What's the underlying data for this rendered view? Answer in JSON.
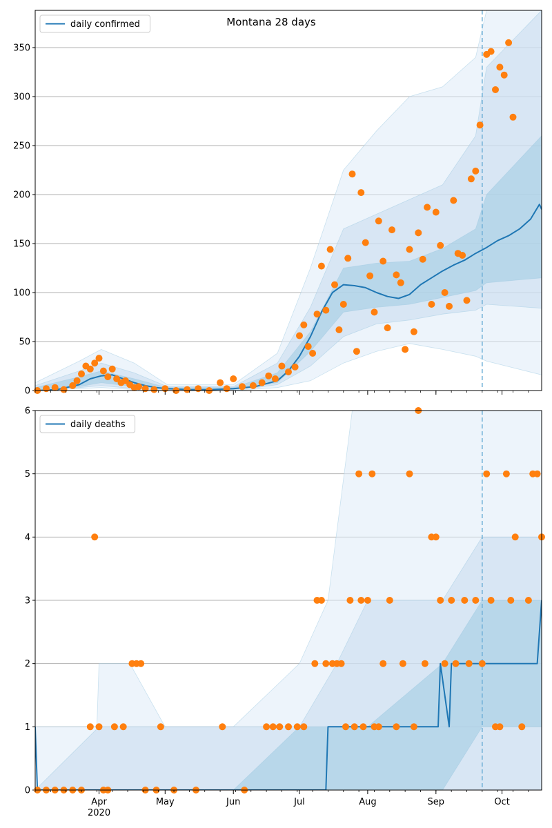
{
  "colors": {
    "line": "#1f77b4",
    "points": "#ff7f0e",
    "band_light": "#deebf7",
    "band_mid": "#c6dbef",
    "band_dark": "#9ecae1",
    "grid": "#b0b0b0",
    "forecast_divider": "#6baed6"
  },
  "chart_data": [
    {
      "type": "line",
      "title": "Montana 28 days",
      "legend": {
        "label": "daily confirmed",
        "placement": "top-left"
      },
      "grid": "horizontal",
      "x_axis": {
        "start": "2020-03-03",
        "end": "2020-10-19"
      },
      "ylim": [
        0,
        388
      ],
      "yticks": [
        0,
        50,
        100,
        150,
        200,
        250,
        300,
        350
      ],
      "forecast_start": "2020-09-22",
      "series": [
        {
          "name": "daily confirmed",
          "kind": "line",
          "x": [
            "2020-03-03",
            "2020-03-13",
            "2020-03-23",
            "2020-03-28",
            "2020-04-02",
            "2020-04-07",
            "2020-04-12",
            "2020-04-17",
            "2020-04-22",
            "2020-04-27",
            "2020-05-02",
            "2020-05-12",
            "2020-05-22",
            "2020-06-01",
            "2020-06-11",
            "2020-06-21",
            "2020-06-26",
            "2020-07-01",
            "2020-07-06",
            "2020-07-11",
            "2020-07-16",
            "2020-07-21",
            "2020-07-26",
            "2020-07-31",
            "2020-08-05",
            "2020-08-10",
            "2020-08-15",
            "2020-08-20",
            "2020-08-25",
            "2020-08-30",
            "2020-09-04",
            "2020-09-09",
            "2020-09-14",
            "2020-09-19",
            "2020-09-24",
            "2020-09-29",
            "2020-10-04",
            "2020-10-09",
            "2020-10-14",
            "2020-10-18",
            "2020-10-19"
          ],
          "y": [
            0,
            1,
            6,
            12,
            15,
            16,
            12,
            8,
            5,
            3,
            2,
            1,
            1,
            2,
            4,
            10,
            20,
            35,
            55,
            80,
            100,
            108,
            107,
            105,
            100,
            96,
            94,
            98,
            108,
            115,
            122,
            128,
            133,
            140,
            146,
            153,
            158,
            165,
            175,
            190,
            185
          ]
        },
        {
          "name": "uncertainty band (outer)",
          "kind": "band",
          "x": [
            "2020-03-03",
            "2020-03-23",
            "2020-04-02",
            "2020-04-17",
            "2020-05-02",
            "2020-06-01",
            "2020-06-21",
            "2020-07-06",
            "2020-07-21",
            "2020-08-05",
            "2020-08-20",
            "2020-09-04",
            "2020-09-19",
            "2020-09-24",
            "2020-10-19"
          ],
          "lower": [
            0,
            2,
            3,
            1,
            0,
            0,
            3,
            10,
            28,
            40,
            48,
            42,
            35,
            30,
            16
          ],
          "upper": [
            8,
            30,
            42,
            28,
            6,
            6,
            38,
            125,
            225,
            265,
            300,
            310,
            340,
            388,
            388
          ]
        },
        {
          "name": "uncertainty band (middle)",
          "kind": "band",
          "x": [
            "2020-03-03",
            "2020-03-23",
            "2020-04-02",
            "2020-04-17",
            "2020-05-02",
            "2020-06-01",
            "2020-06-21",
            "2020-07-06",
            "2020-07-21",
            "2020-08-05",
            "2020-08-20",
            "2020-09-04",
            "2020-09-19",
            "2020-09-24",
            "2020-10-19"
          ],
          "lower": [
            0,
            3,
            5,
            2,
            0,
            0,
            6,
            25,
            55,
            68,
            72,
            78,
            82,
            88,
            84
          ],
          "upper": [
            5,
            20,
            28,
            18,
            4,
            4,
            28,
            85,
            165,
            180,
            195,
            210,
            260,
            330,
            388
          ]
        },
        {
          "name": "uncertainty band (inner)",
          "kind": "band",
          "x": [
            "2020-03-03",
            "2020-03-23",
            "2020-04-02",
            "2020-04-17",
            "2020-05-02",
            "2020-06-01",
            "2020-06-21",
            "2020-07-06",
            "2020-07-21",
            "2020-08-05",
            "2020-08-20",
            "2020-09-04",
            "2020-09-19",
            "2020-09-24",
            "2020-10-19"
          ],
          "lower": [
            0,
            4,
            8,
            4,
            1,
            1,
            8,
            40,
            80,
            85,
            88,
            95,
            102,
            110,
            115
          ],
          "upper": [
            3,
            14,
            20,
            12,
            3,
            3,
            18,
            60,
            125,
            130,
            132,
            145,
            165,
            200,
            260
          ]
        },
        {
          "name": "observed",
          "kind": "scatter",
          "x": [
            "2020-03-04",
            "2020-03-08",
            "2020-03-12",
            "2020-03-16",
            "2020-03-20",
            "2020-03-22",
            "2020-03-24",
            "2020-03-26",
            "2020-03-28",
            "2020-03-30",
            "2020-04-01",
            "2020-04-03",
            "2020-04-05",
            "2020-04-07",
            "2020-04-09",
            "2020-04-11",
            "2020-04-13",
            "2020-04-15",
            "2020-04-17",
            "2020-04-19",
            "2020-04-22",
            "2020-04-26",
            "2020-05-01",
            "2020-05-06",
            "2020-05-11",
            "2020-05-16",
            "2020-05-21",
            "2020-05-26",
            "2020-05-29",
            "2020-06-01",
            "2020-06-05",
            "2020-06-10",
            "2020-06-14",
            "2020-06-17",
            "2020-06-20",
            "2020-06-23",
            "2020-06-26",
            "2020-06-29",
            "2020-07-01",
            "2020-07-03",
            "2020-07-05",
            "2020-07-07",
            "2020-07-09",
            "2020-07-11",
            "2020-07-13",
            "2020-07-15",
            "2020-07-17",
            "2020-07-19",
            "2020-07-21",
            "2020-07-23",
            "2020-07-25",
            "2020-07-27",
            "2020-07-29",
            "2020-07-31",
            "2020-08-02",
            "2020-08-04",
            "2020-08-06",
            "2020-08-08",
            "2020-08-10",
            "2020-08-12",
            "2020-08-14",
            "2020-08-16",
            "2020-08-18",
            "2020-08-20",
            "2020-08-22",
            "2020-08-24",
            "2020-08-26",
            "2020-08-28",
            "2020-08-30",
            "2020-09-01",
            "2020-09-03",
            "2020-09-05",
            "2020-09-07",
            "2020-09-09",
            "2020-09-11",
            "2020-09-13",
            "2020-09-15",
            "2020-09-17",
            "2020-09-19",
            "2020-09-21",
            "2020-09-24",
            "2020-09-26",
            "2020-09-28",
            "2020-09-30",
            "2020-10-02",
            "2020-10-04",
            "2020-10-06"
          ],
          "y": [
            0,
            2,
            3,
            1,
            5,
            10,
            17,
            25,
            22,
            28,
            33,
            20,
            14,
            22,
            12,
            8,
            10,
            6,
            3,
            4,
            2,
            1,
            2,
            0,
            1,
            2,
            0,
            8,
            2,
            12,
            4,
            5,
            8,
            15,
            12,
            25,
            19,
            24,
            56,
            67,
            45,
            38,
            78,
            127,
            82,
            144,
            108,
            62,
            88,
            135,
            221,
            40,
            202,
            151,
            117,
            80,
            173,
            132,
            64,
            164,
            118,
            110,
            42,
            144,
            60,
            161,
            134,
            187,
            88,
            182,
            148,
            100,
            86,
            194,
            140,
            138,
            92,
            216,
            224,
            271,
            343,
            346,
            307,
            330,
            322,
            355,
            279
          ]
        }
      ]
    },
    {
      "type": "line",
      "title": "",
      "legend": {
        "label": "daily deaths",
        "placement": "top-left"
      },
      "grid": "horizontal",
      "x_axis": {
        "start": "2020-03-03",
        "end": "2020-10-19",
        "ticks": [
          {
            "date": "2020-04-01",
            "label": "Apr",
            "year_label": "2020"
          },
          {
            "date": "2020-05-01",
            "label": "May"
          },
          {
            "date": "2020-06-01",
            "label": "Jun"
          },
          {
            "date": "2020-07-01",
            "label": "Jul"
          },
          {
            "date": "2020-08-01",
            "label": "Aug"
          },
          {
            "date": "2020-09-01",
            "label": "Sep"
          },
          {
            "date": "2020-10-01",
            "label": "Oct"
          }
        ]
      },
      "ylim": [
        0,
        6
      ],
      "yticks": [
        0,
        1,
        2,
        3,
        4,
        5,
        6
      ],
      "forecast_start": "2020-09-22",
      "series": [
        {
          "name": "daily deaths",
          "kind": "line",
          "x": [
            "2020-03-03",
            "2020-03-04",
            "2020-07-13",
            "2020-07-14",
            "2020-09-02",
            "2020-09-03",
            "2020-09-07",
            "2020-09-08",
            "2020-10-17",
            "2020-10-19"
          ],
          "y": [
            1,
            0,
            0,
            1,
            1,
            2,
            1,
            2,
            2,
            3
          ]
        },
        {
          "name": "uncertainty band (outer)",
          "kind": "band",
          "x": [
            "2020-03-03",
            "2020-03-31",
            "2020-04-01",
            "2020-04-15",
            "2020-05-01",
            "2020-06-01",
            "2020-07-01",
            "2020-07-14",
            "2020-07-25",
            "2020-09-04",
            "2020-09-22",
            "2020-10-19"
          ],
          "lower": [
            0,
            0,
            0,
            0,
            0,
            0,
            0,
            0,
            0,
            0,
            0,
            0
          ],
          "upper": [
            1,
            1,
            2,
            2,
            1,
            1,
            2,
            3,
            6,
            6,
            6,
            6
          ]
        },
        {
          "name": "uncertainty band (middle)",
          "kind": "band",
          "x": [
            "2020-03-03",
            "2020-04-01",
            "2020-05-01",
            "2020-06-01",
            "2020-07-01",
            "2020-07-18",
            "2020-08-01",
            "2020-09-04",
            "2020-09-22",
            "2020-10-19"
          ],
          "lower": [
            0,
            0,
            0,
            0,
            0,
            0,
            0,
            0,
            0,
            0
          ],
          "upper": [
            0,
            1,
            1,
            1,
            1,
            2,
            3,
            3,
            4,
            4
          ]
        },
        {
          "name": "uncertainty band (inner)",
          "kind": "band",
          "x": [
            "2020-03-03",
            "2020-04-01",
            "2020-05-01",
            "2020-06-01",
            "2020-07-01",
            "2020-08-01",
            "2020-09-04",
            "2020-09-22",
            "2020-10-19"
          ],
          "lower": [
            0,
            0,
            0,
            0,
            0,
            0,
            0,
            1,
            1
          ],
          "upper": [
            0,
            0,
            0,
            0,
            1,
            1,
            2,
            3,
            3
          ]
        },
        {
          "name": "observed",
          "kind": "scatter",
          "x": [
            "2020-03-04",
            "2020-03-08",
            "2020-03-12",
            "2020-03-16",
            "2020-03-20",
            "2020-03-24",
            "2020-03-28",
            "2020-03-30",
            "2020-04-01",
            "2020-04-03",
            "2020-04-05",
            "2020-04-08",
            "2020-04-12",
            "2020-04-16",
            "2020-04-18",
            "2020-04-20",
            "2020-04-22",
            "2020-04-27",
            "2020-04-29",
            "2020-05-05",
            "2020-05-15",
            "2020-05-27",
            "2020-06-06",
            "2020-06-16",
            "2020-06-19",
            "2020-06-22",
            "2020-06-26",
            "2020-06-30",
            "2020-07-03",
            "2020-07-08",
            "2020-07-09",
            "2020-07-11",
            "2020-07-13",
            "2020-07-16",
            "2020-07-18",
            "2020-07-20",
            "2020-07-22",
            "2020-07-24",
            "2020-07-26",
            "2020-07-28",
            "2020-07-29",
            "2020-07-30",
            "2020-08-01",
            "2020-08-03",
            "2020-08-04",
            "2020-08-06",
            "2020-08-08",
            "2020-08-11",
            "2020-08-14",
            "2020-08-17",
            "2020-08-20",
            "2020-08-22",
            "2020-08-24",
            "2020-08-27",
            "2020-08-30",
            "2020-09-01",
            "2020-09-03",
            "2020-09-05",
            "2020-09-08",
            "2020-09-10",
            "2020-09-14",
            "2020-09-16",
            "2020-09-19",
            "2020-09-22",
            "2020-09-24",
            "2020-09-26",
            "2020-09-28",
            "2020-09-30",
            "2020-10-03",
            "2020-10-05",
            "2020-10-07",
            "2020-10-10",
            "2020-10-13",
            "2020-10-15",
            "2020-10-17",
            "2020-10-19"
          ],
          "y": [
            0,
            0,
            0,
            0,
            0,
            0,
            1,
            4,
            1,
            0,
            0,
            1,
            1,
            2,
            2,
            2,
            0,
            0,
            1,
            0,
            0,
            1,
            0,
            1,
            1,
            1,
            1,
            1,
            1,
            2,
            3,
            3,
            2,
            2,
            2,
            2,
            1,
            3,
            1,
            5,
            3,
            1,
            3,
            5,
            1,
            1,
            2,
            3,
            1,
            2,
            5,
            1,
            6,
            2,
            4,
            4,
            3,
            2,
            3,
            2,
            3,
            2,
            3,
            2,
            5,
            3,
            1,
            1,
            5,
            3,
            4,
            1,
            3,
            5,
            5,
            4
          ]
        }
      ]
    }
  ]
}
